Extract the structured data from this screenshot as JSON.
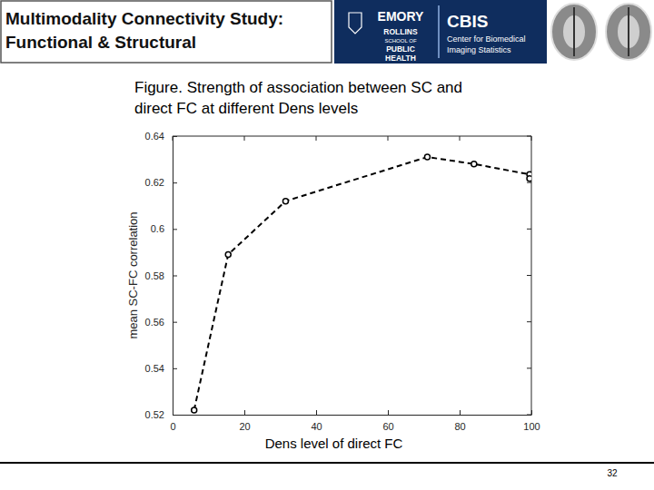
{
  "slide": {
    "header": [
      "Multimodality Connectivity Study:",
      "Functional & Structural"
    ],
    "logo": [
      "EMORY",
      "ROLLINS",
      "SCHOOL OF",
      "PUBLIC",
      "HEALTH",
      "CBIS",
      "Center for Biomedical",
      "Imaging Statistics"
    ],
    "page_number": "32"
  },
  "chart_data": {
    "type": "line",
    "title": "Figure. Strength of association between SC and direct FC at different Dens levels",
    "x_label": "Dens level of direct FC",
    "y_label": "mean SC-FC correlation",
    "x": [
      6,
      15.5,
      31.5,
      71,
      84,
      99.5,
      99.5
    ],
    "values": [
      0.522,
      0.589,
      0.612,
      0.631,
      0.628,
      0.6235,
      0.6217
    ],
    "color": "#000000",
    "marker": "circle",
    "line_style": "dashed",
    "grid": false,
    "xlim": [
      0,
      100
    ],
    "xticks": [
      0,
      20,
      40,
      60,
      80,
      100
    ],
    "ylim": [
      0.52,
      0.64
    ],
    "yticks": [
      0.52,
      0.54,
      0.56,
      0.58,
      0.6,
      0.62,
      0.64
    ]
  }
}
